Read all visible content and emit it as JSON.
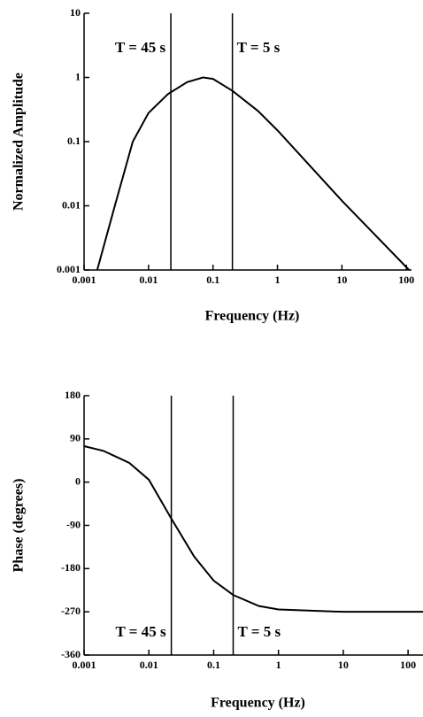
{
  "chart_data": [
    {
      "type": "line",
      "x_label": "Frequency (Hz)",
      "y_label": "Normalized Amplitude",
      "xscale": "log",
      "yscale": "log",
      "xlim": [
        0.001,
        120
      ],
      "ylim": [
        0.001,
        10
      ],
      "xticks": [
        0.001,
        0.01,
        0.1,
        1,
        10,
        100
      ],
      "yticks": [
        0.001,
        0.01,
        0.1,
        1,
        10
      ],
      "color": "#000000",
      "x": [
        0.0016,
        0.003,
        0.0057,
        0.01,
        0.02,
        0.04,
        0.07,
        0.1,
        0.2,
        0.5,
        1,
        10,
        110
      ],
      "values": [
        0.001,
        0.01,
        0.1,
        0.28,
        0.55,
        0.85,
        1,
        0.95,
        0.62,
        0.3,
        0.15,
        0.012,
        0.001
      ],
      "vlines": [
        {
          "x": 0.0222,
          "label": "T = 45 s"
        },
        {
          "x": 0.2,
          "label": "T = 5 s"
        }
      ]
    },
    {
      "type": "line",
      "x_label": "Frequency (Hz)",
      "y_label": "Phase (degrees)",
      "xscale": "log",
      "yscale": "linear",
      "xlim": [
        0.001,
        170
      ],
      "ylim": [
        -360,
        180
      ],
      "xticks": [
        0.001,
        0.01,
        0.1,
        1,
        10,
        100
      ],
      "yticks": [
        -360,
        -270,
        -180,
        -90,
        0,
        90,
        180
      ],
      "color": "#000000",
      "x": [
        0.001,
        0.002,
        0.005,
        0.01,
        0.022,
        0.05,
        0.1,
        0.2,
        0.5,
        1,
        10,
        170
      ],
      "values": [
        75,
        65,
        40,
        5,
        -75,
        -155,
        -205,
        -235,
        -258,
        -265,
        -270,
        -270
      ],
      "vlines": [
        {
          "x": 0.0222,
          "label": "T = 45 s"
        },
        {
          "x": 0.2,
          "label": "T = 5 s"
        }
      ]
    }
  ]
}
